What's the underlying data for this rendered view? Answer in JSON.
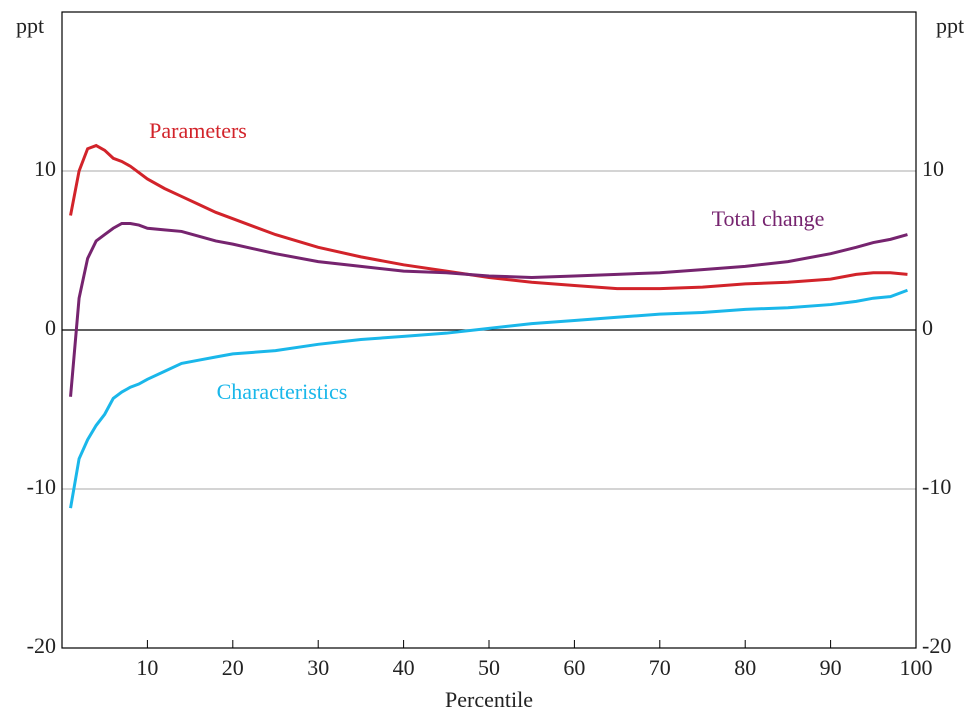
{
  "chart_data": {
    "type": "line",
    "y_unit_left": "ppt",
    "y_unit_right": "ppt",
    "xlabel": "Percentile",
    "x": [
      1,
      2,
      3,
      4,
      5,
      6,
      7,
      8,
      9,
      10,
      12,
      14,
      16,
      18,
      20,
      25,
      30,
      35,
      40,
      45,
      50,
      55,
      60,
      65,
      70,
      75,
      80,
      85,
      90,
      93,
      95,
      97,
      99
    ],
    "series": [
      {
        "name": "Parameters",
        "color": "#d2232a",
        "values": [
          7.2,
          10.0,
          11.4,
          11.6,
          11.3,
          10.8,
          10.6,
          10.3,
          9.9,
          9.5,
          8.9,
          8.4,
          7.9,
          7.4,
          7.0,
          6.0,
          5.2,
          4.6,
          4.1,
          3.7,
          3.3,
          3.0,
          2.8,
          2.6,
          2.6,
          2.7,
          2.9,
          3.0,
          3.2,
          3.5,
          3.6,
          3.6,
          3.5
        ]
      },
      {
        "name": "Total change",
        "color": "#76246f",
        "values": [
          -4.2,
          2.0,
          4.5,
          5.6,
          6.0,
          6.4,
          6.7,
          6.7,
          6.6,
          6.4,
          6.3,
          6.2,
          5.9,
          5.6,
          5.4,
          4.8,
          4.3,
          4.0,
          3.7,
          3.6,
          3.4,
          3.3,
          3.4,
          3.5,
          3.6,
          3.8,
          4.0,
          4.3,
          4.8,
          5.2,
          5.5,
          5.7,
          6.0
        ]
      },
      {
        "name": "Characteristics",
        "color": "#1ab7ea",
        "values": [
          -11.2,
          -8.1,
          -6.9,
          -6.0,
          -5.3,
          -4.3,
          -3.9,
          -3.6,
          -3.4,
          -3.1,
          -2.6,
          -2.1,
          -1.9,
          -1.7,
          -1.5,
          -1.3,
          -0.9,
          -0.6,
          -0.4,
          -0.2,
          0.1,
          0.4,
          0.6,
          0.8,
          1.0,
          1.1,
          1.3,
          1.4,
          1.6,
          1.8,
          2.0,
          2.1,
          2.5
        ]
      }
    ],
    "xlim": [
      0,
      100
    ],
    "xticks": [
      10,
      20,
      30,
      40,
      50,
      60,
      70,
      80,
      90,
      100
    ],
    "ylim": [
      -20,
      20
    ],
    "yticks": [
      -20,
      -10,
      0,
      10
    ],
    "y2lim": [
      -20,
      20
    ],
    "y2ticks": [
      -20,
      -10,
      0,
      10
    ],
    "grid": true
  }
}
